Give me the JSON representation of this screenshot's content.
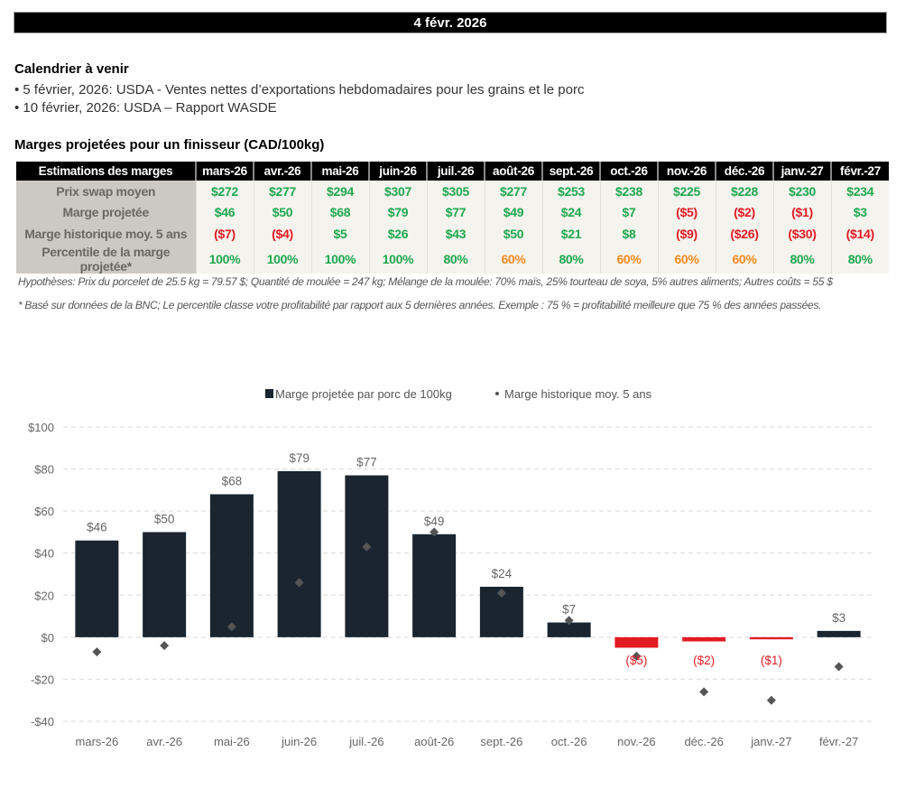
{
  "header": {
    "date": "4 févr. 2026"
  },
  "calendar": {
    "title": "Calendrier à venir",
    "items": [
      "• 5 février, 2026: USDA - Ventes nettes d’exportations hebdomadaires pour les grains et le porc",
      "• 10 février, 2026: USDA – Rapport WASDE"
    ]
  },
  "table": {
    "title": "Marges projetées pour un finisseur (CAD/100kg)",
    "corner": "Estimations des marges",
    "months": [
      "mars-26",
      "avr.-26",
      "mai-26",
      "juin-26",
      "juil.-26",
      "août-26",
      "sept.-26",
      "oct.-26",
      "nov.-26",
      "déc.-26",
      "janv.-27",
      "févr.-27"
    ],
    "rows": [
      {
        "label": "Prix swap moyen",
        "values": [
          "$272",
          "$277",
          "$294",
          "$307",
          "$305",
          "$277",
          "$253",
          "$238",
          "$225",
          "$228",
          "$230",
          "$234"
        ],
        "tones": [
          "pos",
          "pos",
          "pos",
          "pos",
          "pos",
          "pos",
          "pos",
          "pos",
          "pos",
          "pos",
          "pos",
          "pos"
        ]
      },
      {
        "label": "Marge projetée",
        "values": [
          "$46",
          "$50",
          "$68",
          "$79",
          "$77",
          "$49",
          "$24",
          "$7",
          "($5)",
          "($2)",
          "($1)",
          "$3"
        ],
        "tones": [
          "pos",
          "pos",
          "pos",
          "pos",
          "pos",
          "pos",
          "pos",
          "pos",
          "neg",
          "neg",
          "neg",
          "pos"
        ]
      },
      {
        "label": "Marge historique moy. 5 ans",
        "values": [
          "($7)",
          "($4)",
          "$5",
          "$26",
          "$43",
          "$50",
          "$21",
          "$8",
          "($9)",
          "($26)",
          "($30)",
          "($14)"
        ],
        "tones": [
          "neg",
          "neg",
          "pos",
          "pos",
          "pos",
          "pos",
          "pos",
          "pos",
          "neg",
          "neg",
          "neg",
          "neg"
        ]
      },
      {
        "label": "Percentile de la marge projetée*",
        "values": [
          "100%",
          "100%",
          "100%",
          "100%",
          "80%",
          "60%",
          "80%",
          "60%",
          "60%",
          "60%",
          "80%",
          "80%"
        ],
        "tones": [
          "pos",
          "pos",
          "pos",
          "pos",
          "pos",
          "mid",
          "pos",
          "mid",
          "mid",
          "mid",
          "pos",
          "pos"
        ]
      }
    ],
    "hypotheses": "Hypothèses: Prix du porcelet de 25.5 kg = 79.57 $; Quantité de moulée = 247 kg; Mélange de la moulée: 70% maïs, 25% tourteau de soya, 5% autres aliments; Autres coûts = 55 $",
    "footnote": "* Basé sur données de la BNC; Le percentile classe votre profitabilité par rapport aux 5 dernières années. Exemple : 75 % = profitabilité meilleure que 75 % des années passées."
  },
  "colors": {
    "bar": "#1a2530",
    "negative": "#e31b23",
    "diamond": "#555555",
    "positive_text": "#1fa84f",
    "mid_text": "#f5891f"
  },
  "chart_data": {
    "type": "bar",
    "categories": [
      "mars-26",
      "avr.-26",
      "mai-26",
      "juin-26",
      "juil.-26",
      "août-26",
      "sept.-26",
      "oct.-26",
      "nov.-26",
      "déc.-26",
      "janv.-27",
      "févr.-27"
    ],
    "series": [
      {
        "name": "Marge projetée par porc de 100kg",
        "kind": "bar",
        "values": [
          46,
          50,
          68,
          79,
          77,
          49,
          24,
          7,
          -5,
          -2,
          -1,
          3
        ],
        "labels": [
          "$46",
          "$50",
          "$68",
          "$79",
          "$77",
          "$49",
          "$24",
          "$7",
          "($5)",
          "($2)",
          "($1)",
          "$3"
        ]
      },
      {
        "name": "Marge historique moy. 5 ans",
        "kind": "scatter",
        "marker": "diamond",
        "values": [
          -7,
          -4,
          5,
          26,
          43,
          50,
          21,
          8,
          -9,
          -26,
          -30,
          -14
        ]
      }
    ],
    "ylim": [
      -40,
      100
    ],
    "yticks": [
      100,
      80,
      60,
      40,
      20,
      0,
      -20,
      -40
    ],
    "ytick_labels": [
      "$100",
      "$80",
      "$60",
      "$40",
      "$20",
      "$0",
      "-$20",
      "-$40"
    ],
    "grid": true,
    "legend": "top-center",
    "title": "",
    "xlabel": "",
    "ylabel": ""
  }
}
